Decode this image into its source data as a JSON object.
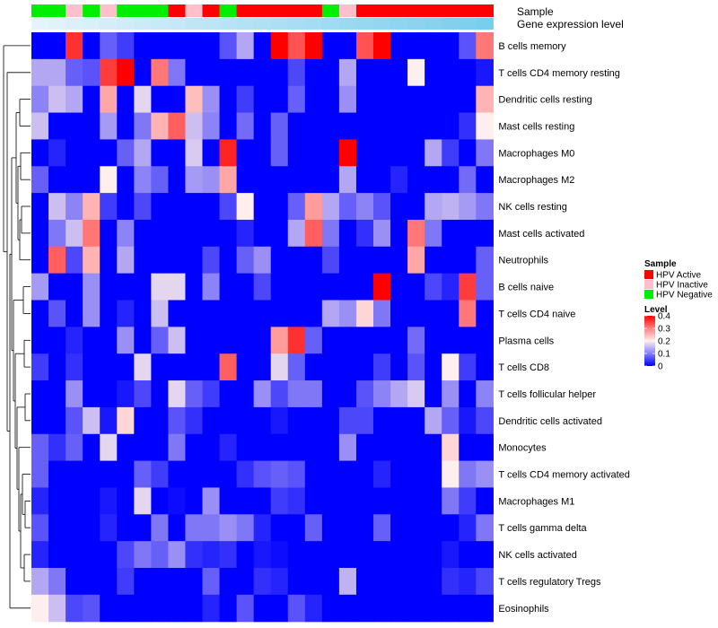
{
  "chart_data": {
    "type": "heatmap",
    "annotation_labels": [
      "Sample",
      "Gene expression level"
    ],
    "sample_groups": [
      "Negative",
      "Negative",
      "Inactive",
      "Negative",
      "Inactive",
      "Negative",
      "Negative",
      "Negative",
      "Active",
      "Inactive",
      "Active",
      "Negative",
      "Active",
      "Active",
      "Active",
      "Active",
      "Active",
      "Negative",
      "Inactive",
      "Active",
      "Active",
      "Active",
      "Active",
      "Active",
      "Active",
      "Active",
      "Active"
    ],
    "expression_levels": [
      0.02,
      0.05,
      0.08,
      0.11,
      0.14,
      0.17,
      0.2,
      0.23,
      0.26,
      0.29,
      0.32,
      0.35,
      0.38,
      0.41,
      0.44,
      0.47,
      0.5,
      0.53,
      0.56,
      0.59,
      0.62,
      0.65,
      0.68,
      0.71,
      0.74,
      0.77,
      0.8
    ],
    "rows": [
      "B cells memory",
      "T cells CD4 memory resting",
      "Dendritic cells resting",
      "Mast cells resting",
      "Macrophages M0",
      "Macrophages M2",
      "NK cells resting",
      "Mast cells activated",
      "Neutrophils",
      "B cells naive",
      "T cells CD4 naive",
      "Plasma cells",
      "T cells CD8",
      "T cells follicular helper",
      "Dendritic cells activated",
      "Monocytes",
      "T cells CD4 memory activated",
      "Macrophages M1",
      "T cells gamma delta",
      "NK cells activated",
      "T cells regulatory  Tregs",
      "Eosinophils"
    ],
    "values": [
      [
        0.0,
        0.0,
        0.36,
        0.0,
        0.08,
        0.05,
        0.0,
        0.0,
        0.0,
        0.0,
        0.0,
        0.07,
        0.14,
        0.0,
        0.4,
        0.33,
        0.4,
        0.0,
        0.0,
        0.33,
        0.4,
        0.0,
        0.0,
        0.0,
        0.0,
        0.07,
        0.3
      ],
      [
        0.14,
        0.14,
        0.08,
        0.07,
        0.35,
        0.4,
        0.0,
        0.3,
        0.1,
        0.0,
        0.0,
        0.0,
        0.0,
        0.0,
        0.0,
        0.06,
        0.0,
        0.0,
        0.14,
        0.0,
        0.0,
        0.0,
        0.2,
        0.0,
        0.0,
        0.0,
        0.02
      ],
      [
        0.11,
        0.16,
        0.14,
        0.0,
        0.26,
        0.0,
        0.18,
        0.0,
        0.0,
        0.24,
        0.12,
        0.0,
        0.05,
        0.0,
        0.0,
        0.08,
        0.0,
        0.0,
        0.12,
        0.0,
        0.0,
        0.0,
        0.0,
        0.0,
        0.0,
        0.0,
        0.25
      ],
      [
        0.16,
        0.0,
        0.0,
        0.0,
        0.13,
        0.0,
        0.1,
        0.25,
        0.32,
        0.16,
        0.11,
        0.0,
        0.09,
        0.0,
        0.08,
        0.0,
        0.0,
        0.0,
        0.0,
        0.0,
        0.0,
        0.0,
        0.0,
        0.0,
        0.0,
        0.04,
        0.2
      ],
      [
        0.0,
        0.03,
        0.0,
        0.0,
        0.0,
        0.08,
        0.14,
        0.0,
        0.0,
        0.17,
        0.0,
        0.37,
        0.0,
        0.0,
        0.08,
        0.0,
        0.0,
        0.0,
        0.4,
        0.0,
        0.0,
        0.0,
        0.0,
        0.14,
        0.05,
        0.0,
        0.1
      ],
      [
        0.08,
        0.0,
        0.0,
        0.0,
        0.2,
        0.0,
        0.11,
        0.08,
        0.0,
        0.13,
        0.12,
        0.26,
        0.0,
        0.0,
        0.0,
        0.0,
        0.0,
        0.0,
        0.14,
        0.0,
        0.0,
        0.03,
        0.0,
        0.0,
        0.0,
        0.09,
        0.0
      ],
      [
        0.0,
        0.16,
        0.11,
        0.25,
        0.05,
        0.0,
        0.06,
        0.0,
        0.0,
        0.0,
        0.0,
        0.06,
        0.2,
        0.0,
        0.0,
        0.08,
        0.27,
        0.14,
        0.08,
        0.11,
        0.07,
        0.0,
        0.0,
        0.14,
        0.15,
        0.13,
        0.1
      ],
      [
        0.0,
        0.1,
        0.16,
        0.3,
        0.0,
        0.11,
        0.0,
        0.0,
        0.0,
        0.0,
        0.0,
        0.0,
        0.03,
        0.0,
        0.0,
        0.14,
        0.32,
        0.1,
        0.0,
        0.04,
        0.12,
        0.0,
        0.3,
        0.1,
        0.0,
        0.0,
        0.0
      ],
      [
        0.0,
        0.32,
        0.06,
        0.25,
        0.0,
        0.14,
        0.0,
        0.0,
        0.0,
        0.0,
        0.06,
        0.0,
        0.08,
        0.12,
        0.0,
        0.0,
        0.0,
        0.06,
        0.0,
        0.0,
        0.0,
        0.0,
        0.26,
        0.0,
        0.0,
        0.0,
        0.08
      ],
      [
        0.13,
        0.0,
        0.0,
        0.12,
        0.0,
        0.0,
        0.0,
        0.18,
        0.18,
        0.0,
        0.11,
        0.0,
        0.0,
        0.06,
        0.0,
        0.0,
        0.0,
        0.0,
        0.0,
        0.0,
        0.4,
        0.0,
        0.0,
        0.06,
        0.03,
        0.35,
        0.08
      ],
      [
        0.0,
        0.07,
        0.0,
        0.12,
        0.0,
        0.03,
        0.0,
        0.16,
        0.0,
        0.0,
        0.0,
        0.0,
        0.0,
        0.0,
        0.0,
        0.0,
        0.0,
        0.14,
        0.12,
        0.22,
        0.1,
        0.0,
        0.0,
        0.0,
        0.0,
        0.3,
        0.0
      ],
      [
        0.0,
        0.0,
        0.03,
        0.0,
        0.0,
        0.12,
        0.0,
        0.08,
        0.16,
        0.0,
        0.0,
        0.0,
        0.0,
        0.0,
        0.27,
        0.36,
        0.08,
        0.0,
        0.0,
        0.0,
        0.0,
        0.0,
        0.09,
        0.0,
        0.0,
        0.0,
        0.0
      ],
      [
        0.05,
        0.0,
        0.04,
        0.0,
        0.0,
        0.0,
        0.18,
        0.0,
        0.0,
        0.0,
        0.0,
        0.32,
        0.0,
        0.0,
        0.18,
        0.08,
        0.0,
        0.0,
        0.0,
        0.0,
        0.05,
        0.0,
        0.07,
        0.0,
        0.2,
        0.05,
        0.0
      ],
      [
        0.0,
        0.0,
        0.12,
        0.0,
        0.0,
        0.02,
        0.06,
        0.0,
        0.18,
        0.08,
        0.05,
        0.0,
        0.0,
        0.12,
        0.06,
        0.1,
        0.1,
        0.0,
        0.0,
        0.07,
        0.11,
        0.14,
        0.17,
        0.0,
        0.12,
        0.0,
        0.11
      ],
      [
        0.0,
        0.0,
        0.07,
        0.16,
        0.02,
        0.22,
        0.0,
        0.0,
        0.07,
        0.04,
        0.0,
        0.0,
        0.0,
        0.0,
        0.02,
        0.0,
        0.0,
        0.0,
        0.06,
        0.06,
        0.0,
        0.0,
        0.0,
        0.14,
        0.08,
        0.02,
        0.06
      ],
      [
        0.08,
        0.04,
        0.08,
        0.0,
        0.18,
        0.0,
        0.0,
        0.0,
        0.1,
        0.0,
        0.0,
        0.03,
        0.0,
        0.0,
        0.0,
        0.0,
        0.0,
        0.0,
        0.12,
        0.0,
        0.0,
        0.0,
        0.0,
        0.0,
        0.22,
        0.0,
        0.0
      ],
      [
        0.08,
        0.0,
        0.0,
        0.0,
        0.0,
        0.0,
        0.08,
        0.05,
        0.0,
        0.0,
        0.0,
        0.0,
        0.04,
        0.07,
        0.08,
        0.07,
        0.0,
        0.0,
        0.0,
        0.0,
        0.03,
        0.0,
        0.0,
        0.0,
        0.2,
        0.1,
        0.12
      ],
      [
        0.03,
        0.0,
        0.0,
        0.0,
        0.02,
        0.0,
        0.18,
        0.0,
        0.01,
        0.0,
        0.12,
        0.0,
        0.0,
        0.0,
        0.05,
        0.04,
        0.0,
        0.0,
        0.0,
        0.0,
        0.0,
        0.0,
        0.0,
        0.0,
        0.1,
        0.05,
        0.0
      ],
      [
        0.07,
        0.0,
        0.0,
        0.0,
        0.03,
        0.0,
        0.0,
        0.1,
        0.0,
        0.1,
        0.1,
        0.12,
        0.1,
        0.03,
        0.0,
        0.0,
        0.08,
        0.0,
        0.0,
        0.0,
        0.08,
        0.0,
        0.0,
        0.0,
        0.0,
        0.03,
        0.1
      ],
      [
        0.03,
        0.0,
        0.0,
        0.0,
        0.0,
        0.06,
        0.1,
        0.08,
        0.12,
        0.04,
        0.03,
        0.04,
        0.0,
        0.02,
        0.01,
        0.0,
        0.0,
        0.0,
        0.0,
        0.0,
        0.0,
        0.0,
        0.0,
        0.0,
        0.02,
        0.0,
        0.0
      ],
      [
        0.14,
        0.1,
        0.0,
        0.0,
        0.0,
        0.05,
        0.0,
        0.0,
        0.0,
        0.0,
        0.08,
        0.0,
        0.0,
        0.04,
        0.03,
        0.0,
        0.0,
        0.0,
        0.15,
        0.0,
        0.0,
        0.0,
        0.0,
        0.0,
        0.04,
        0.03,
        0.06
      ],
      [
        0.2,
        0.16,
        0.06,
        0.07,
        0.0,
        0.0,
        0.0,
        0.0,
        0.0,
        0.0,
        0.03,
        0.0,
        0.07,
        0.0,
        0.0,
        0.07,
        0.03,
        0.0,
        0.0,
        0.0,
        0.0,
        0.0,
        0.0,
        0.0,
        0.0,
        0.0,
        0.0
      ]
    ],
    "value_range": [
      0,
      0.4
    ],
    "color_scale": {
      "low": "#0000ff",
      "mid": "#ffeeee",
      "high": "#ff0000",
      "mid_value": 0.2
    },
    "sample_colors": {
      "Active": "#ff0000",
      "Inactive": "#ffc0cb",
      "Negative": "#00ee00"
    },
    "expression_colors": {
      "low": "#e8f4fb",
      "high": "#5fc4ea"
    },
    "dendrogram": "row clustering tree on left side",
    "legends": {
      "sample": {
        "title": "Sample",
        "entries": [
          {
            "key": "Active",
            "label": "HPV Active"
          },
          {
            "key": "Inactive",
            "label": "HPV Inactive"
          },
          {
            "key": "Negative",
            "label": "HPV Negative"
          }
        ]
      },
      "level": {
        "title": "Level",
        "ticks": [
          0.4,
          0.3,
          0.2,
          0.1,
          0
        ],
        "tick_labels": [
          "0.4",
          "0.3",
          "0.2",
          "0.1",
          "0"
        ]
      }
    }
  }
}
